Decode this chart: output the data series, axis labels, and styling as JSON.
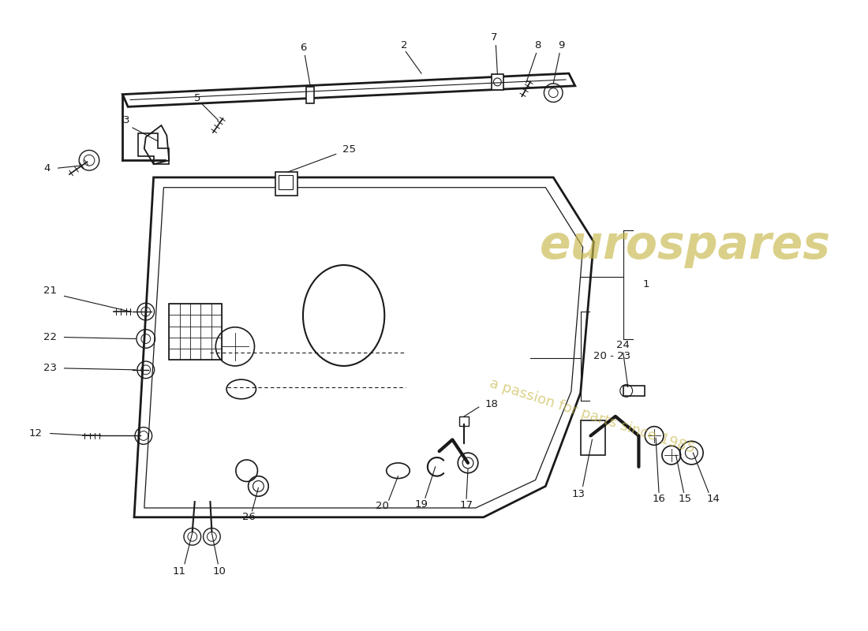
{
  "bg_color": "#ffffff",
  "line_color": "#1a1a1a",
  "label_color": "#1a1a1a",
  "watermark_color1": "#c8b84a",
  "watermark_color2": "#c8b84a",
  "fig_width": 11.0,
  "fig_height": 8.0,
  "dpi": 100,
  "watermark1": "eurospares",
  "watermark2": "a passion for parts since 1985",
  "label_fontsize": 9.5
}
